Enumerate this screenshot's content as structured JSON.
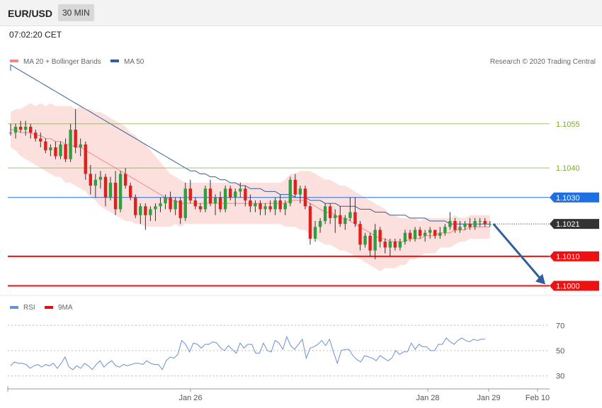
{
  "header": {
    "pair": "EUR/USD",
    "timeframe": "30 MIN"
  },
  "timestamp": "07:02:20 CET",
  "legend": {
    "ma": {
      "label": "MA 20 + Bollinger Bands",
      "color": "#f08a80"
    },
    "ma50": {
      "label": "MA 50",
      "color": "#2f5f9f"
    },
    "rsi": {
      "label": "RSI",
      "color": "#6a8fd8"
    },
    "rsi9": {
      "label": "9MA",
      "color": "#e01010"
    }
  },
  "credit": "Research © 2020 Trading Central",
  "chart_data": [
    {
      "type": "candlestick",
      "title": "EUR/USD",
      "x_tick_labels": [
        "Jan 26",
        "Jan 28",
        "Jan 29",
        "Feb 10"
      ],
      "ylim": [
        1.0997,
        1.1085
      ],
      "levels": [
        {
          "label": "1.1055",
          "value": 1.1055,
          "style": "resistance",
          "color": "#7aab2e"
        },
        {
          "label": "1.1040",
          "value": 1.104,
          "style": "resistance",
          "color": "#7aab2e"
        },
        {
          "label": "1.1030",
          "value": 1.103,
          "style": "pivot",
          "color": "#1f6fe0"
        },
        {
          "label": "1.1021",
          "value": 1.1021,
          "style": "last",
          "color": "#333333"
        },
        {
          "label": "1.1010",
          "value": 1.101,
          "style": "support",
          "color": "#ee1111"
        },
        {
          "label": "1.1000",
          "value": 1.1,
          "style": "support",
          "color": "#ee1111"
        }
      ],
      "candles": [
        [
          1.1052,
          1.1055,
          1.1051,
          1.1052
        ],
        [
          1.1052,
          1.1055,
          1.105,
          1.1054
        ],
        [
          1.1054,
          1.1056,
          1.1052,
          1.1053
        ],
        [
          1.1053,
          1.1056,
          1.1051,
          1.1054
        ],
        [
          1.1054,
          1.1055,
          1.105,
          1.1052
        ],
        [
          1.1052,
          1.1053,
          1.1049,
          1.105
        ],
        [
          1.105,
          1.1052,
          1.1047,
          1.1049
        ],
        [
          1.1049,
          1.105,
          1.1045,
          1.1046
        ],
        [
          1.1046,
          1.1048,
          1.1044,
          1.1047
        ],
        [
          1.1047,
          1.1049,
          1.1043,
          1.1044
        ],
        [
          1.1044,
          1.1049,
          1.1043,
          1.1048
        ],
        [
          1.1048,
          1.105,
          1.1042,
          1.1043
        ],
        [
          1.1043,
          1.1055,
          1.1042,
          1.1053
        ],
        [
          1.1053,
          1.106,
          1.1045,
          1.1047
        ],
        [
          1.1047,
          1.105,
          1.1044,
          1.1048
        ],
        [
          1.1048,
          1.1049,
          1.1036,
          1.1038
        ],
        [
          1.1038,
          1.1041,
          1.1031,
          1.1034
        ],
        [
          1.1034,
          1.1038,
          1.103,
          1.1036
        ],
        [
          1.1036,
          1.1039,
          1.1033,
          1.1037
        ],
        [
          1.1037,
          1.1038,
          1.1027,
          1.103
        ],
        [
          1.103,
          1.1037,
          1.1029,
          1.1035
        ],
        [
          1.1035,
          1.1039,
          1.1024,
          1.1026
        ],
        [
          1.1026,
          1.1039,
          1.1025,
          1.1038
        ],
        [
          1.1038,
          1.104,
          1.1033,
          1.1034
        ],
        [
          1.1034,
          1.1035,
          1.1029,
          1.103
        ],
        [
          1.103,
          1.1031,
          1.1023,
          1.1024
        ],
        [
          1.1024,
          1.1028,
          1.1021,
          1.1027
        ],
        [
          1.1027,
          1.1028,
          1.1019,
          1.1024
        ],
        [
          1.1024,
          1.1027,
          1.1022,
          1.1026
        ],
        [
          1.1026,
          1.1028,
          1.1022,
          1.1027
        ],
        [
          1.1027,
          1.103,
          1.1025,
          1.1028
        ],
        [
          1.1028,
          1.1031,
          1.1026,
          1.103
        ],
        [
          1.103,
          1.1032,
          1.1025,
          1.1026
        ],
        [
          1.1026,
          1.103,
          1.1024,
          1.1029
        ],
        [
          1.1029,
          1.103,
          1.1021,
          1.1023
        ],
        [
          1.1023,
          1.1035,
          1.1022,
          1.1033
        ],
        [
          1.1033,
          1.1036,
          1.1028,
          1.1029
        ],
        [
          1.1029,
          1.103,
          1.1026,
          1.1027
        ],
        [
          1.1027,
          1.1028,
          1.1025,
          1.1026
        ],
        [
          1.1026,
          1.1034,
          1.1025,
          1.1033
        ],
        [
          1.1033,
          1.1036,
          1.1027,
          1.1028
        ],
        [
          1.1028,
          1.1031,
          1.1024,
          1.103
        ],
        [
          1.103,
          1.1032,
          1.1025,
          1.1026
        ],
        [
          1.1026,
          1.1034,
          1.1025,
          1.1033
        ],
        [
          1.1033,
          1.1034,
          1.1029,
          1.103
        ],
        [
          1.103,
          1.1033,
          1.1027,
          1.1032
        ],
        [
          1.1032,
          1.1035,
          1.103,
          1.1033
        ],
        [
          1.1033,
          1.1034,
          1.1027,
          1.1029
        ],
        [
          1.1029,
          1.1031,
          1.1025,
          1.1027
        ],
        [
          1.1027,
          1.1029,
          1.1025,
          1.1028
        ],
        [
          1.1028,
          1.1029,
          1.1024,
          1.1026
        ],
        [
          1.1026,
          1.1028,
          1.1024,
          1.1027
        ],
        [
          1.1027,
          1.1029,
          1.1025,
          1.1026
        ],
        [
          1.1026,
          1.103,
          1.1024,
          1.1029
        ],
        [
          1.1029,
          1.1031,
          1.1025,
          1.1026
        ],
        [
          1.1026,
          1.1029,
          1.1024,
          1.1028
        ],
        [
          1.1028,
          1.1037,
          1.1027,
          1.1036
        ],
        [
          1.1036,
          1.1038,
          1.103,
          1.1031
        ],
        [
          1.1031,
          1.1034,
          1.1028,
          1.1033
        ],
        [
          1.1033,
          1.1034,
          1.1026,
          1.1027
        ],
        [
          1.1027,
          1.1028,
          1.1014,
          1.1016
        ],
        [
          1.1016,
          1.1022,
          1.1015,
          1.102
        ],
        [
          1.102,
          1.1023,
          1.1018,
          1.1022
        ],
        [
          1.1022,
          1.1028,
          1.1021,
          1.1027
        ],
        [
          1.1027,
          1.1028,
          1.1021,
          1.1023
        ],
        [
          1.1023,
          1.1026,
          1.1018,
          1.1024
        ],
        [
          1.1024,
          1.1027,
          1.102,
          1.1021
        ],
        [
          1.1021,
          1.1024,
          1.1019,
          1.1023
        ],
        [
          1.1023,
          1.103,
          1.1022,
          1.1025
        ],
        [
          1.1025,
          1.103,
          1.102,
          1.1021
        ],
        [
          1.1021,
          1.1022,
          1.1012,
          1.1014
        ],
        [
          1.1014,
          1.1018,
          1.1013,
          1.1017
        ],
        [
          1.1017,
          1.1018,
          1.101,
          1.1012
        ],
        [
          1.1012,
          1.1021,
          1.1009,
          1.1019
        ],
        [
          1.1019,
          1.102,
          1.1013,
          1.1015
        ],
        [
          1.1015,
          1.1016,
          1.1011,
          1.1013
        ],
        [
          1.1013,
          1.1016,
          1.101,
          1.1015
        ],
        [
          1.1015,
          1.1016,
          1.1012,
          1.1013
        ],
        [
          1.1013,
          1.1016,
          1.1012,
          1.1015
        ],
        [
          1.1015,
          1.1019,
          1.1014,
          1.1018
        ],
        [
          1.1018,
          1.1019,
          1.1015,
          1.1016
        ],
        [
          1.1016,
          1.102,
          1.1015,
          1.1019
        ],
        [
          1.1019,
          1.102,
          1.1016,
          1.1017
        ],
        [
          1.1017,
          1.1019,
          1.1015,
          1.1018
        ],
        [
          1.1018,
          1.102,
          1.1016,
          1.1019
        ],
        [
          1.1019,
          1.1019,
          1.1016,
          1.1017
        ],
        [
          1.1017,
          1.102,
          1.1016,
          1.1018
        ],
        [
          1.1018,
          1.1021,
          1.1017,
          1.102
        ],
        [
          1.102,
          1.1025,
          1.1019,
          1.1022
        ],
        [
          1.1022,
          1.1023,
          1.1018,
          1.1019
        ],
        [
          1.1019,
          1.1022,
          1.1018,
          1.102
        ],
        [
          1.102,
          1.1022,
          1.1019,
          1.1021
        ],
        [
          1.1021,
          1.1023,
          1.1019,
          1.102
        ],
        [
          1.102,
          1.1023,
          1.1019,
          1.1022
        ],
        [
          1.1022,
          1.1023,
          1.102,
          1.1022
        ],
        [
          1.1022,
          1.1023,
          1.102,
          1.1021
        ],
        [
          1.1021,
          1.1022,
          1.102,
          1.1021
        ]
      ],
      "ma50": [
        1.1075,
        1.1074,
        1.1073,
        1.1072,
        1.1071,
        1.107,
        1.1069,
        1.1068,
        1.1067,
        1.1066,
        1.1065,
        1.1064,
        1.1063,
        1.1062,
        1.1061,
        1.106,
        1.1059,
        1.1058,
        1.1057,
        1.1056,
        1.1055,
        1.1054,
        1.1053,
        1.1052,
        1.1051,
        1.105,
        1.1049,
        1.1048,
        1.1047,
        1.1046,
        1.1045,
        1.1044,
        1.1043,
        1.1042,
        1.1041,
        1.104,
        1.1039,
        1.1039,
        1.1038,
        1.1038,
        1.1037,
        1.1037,
        1.1036,
        1.1036,
        1.1035,
        1.1035,
        1.1034,
        1.1034,
        1.1033,
        1.1033,
        1.1033,
        1.1032,
        1.1032,
        1.1032,
        1.1031,
        1.1031,
        1.1031,
        1.103,
        1.103,
        1.103,
        1.1029,
        1.1029,
        1.1029,
        1.1028,
        1.1028,
        1.1028,
        1.1027,
        1.1027,
        1.1027,
        1.1027,
        1.1026,
        1.1026,
        1.1026,
        1.1025,
        1.1025,
        1.1025,
        1.1024,
        1.1024,
        1.1024,
        1.1024,
        1.1023,
        1.1023,
        1.1023,
        1.1023,
        1.1022,
        1.1022,
        1.1022,
        1.1022,
        1.1021,
        1.1021,
        1.1021,
        1.1021,
        1.1021,
        1.1021,
        1.1021,
        1.1021,
        1.1021
      ],
      "ma20": [
        1.1053,
        1.1053,
        1.1052,
        1.1052,
        1.1052,
        1.1051,
        1.1051,
        1.105,
        1.105,
        1.1049,
        1.1049,
        1.1048,
        1.1048,
        1.1047,
        1.1047,
        1.1046,
        1.1045,
        1.1044,
        1.1043,
        1.1042,
        1.1041,
        1.104,
        1.1039,
        1.1038,
        1.1037,
        1.1036,
        1.1035,
        1.1034,
        1.1033,
        1.1032,
        1.1031,
        1.103,
        1.1029,
        1.1029,
        1.1028,
        1.1028,
        1.1028,
        1.1028,
        1.1028,
        1.1028,
        1.1028,
        1.1028,
        1.1028,
        1.1028,
        1.1028,
        1.1028,
        1.1028,
        1.1028,
        1.1028,
        1.1028,
        1.1028,
        1.1028,
        1.1028,
        1.1028,
        1.1028,
        1.1028,
        1.1029,
        1.1029,
        1.1029,
        1.1029,
        1.1028,
        1.1027,
        1.1026,
        1.1025,
        1.1025,
        1.1024,
        1.1023,
        1.1023,
        1.1022,
        1.1021,
        1.102,
        1.1019,
        1.1018,
        1.1017,
        1.1016,
        1.1016,
        1.1015,
        1.1015,
        1.1015,
        1.1015,
        1.1016,
        1.1016,
        1.1016,
        1.1017,
        1.1017,
        1.1017,
        1.1018,
        1.1018,
        1.1018,
        1.1019,
        1.1019,
        1.1019,
        1.102,
        1.102,
        1.102,
        1.102,
        1.102
      ],
      "bb_width": [
        0.0006,
        0.0007,
        0.0008,
        0.0009,
        0.001,
        0.001,
        0.0011,
        0.0011,
        0.0012,
        0.0012,
        0.0012,
        0.0013,
        0.0013,
        0.0013,
        0.0014,
        0.0014,
        0.0015,
        0.0015,
        0.0016,
        0.0016,
        0.0016,
        0.0016,
        0.0016,
        0.0016,
        0.0015,
        0.0015,
        0.0014,
        0.0014,
        0.0013,
        0.0012,
        0.0011,
        0.001,
        0.0009,
        0.0008,
        0.0008,
        0.0007,
        0.0007,
        0.0007,
        0.0007,
        0.0007,
        0.0007,
        0.0007,
        0.0007,
        0.0007,
        0.0007,
        0.0007,
        0.0007,
        0.0007,
        0.0007,
        0.0007,
        0.0007,
        0.0007,
        0.0007,
        0.0007,
        0.0007,
        0.0008,
        0.0009,
        0.0009,
        0.001,
        0.001,
        0.0011,
        0.0011,
        0.0011,
        0.0011,
        0.0011,
        0.0011,
        0.0011,
        0.0011,
        0.0011,
        0.0011,
        0.0011,
        0.0011,
        0.0011,
        0.0011,
        0.0011,
        0.001,
        0.0009,
        0.0009,
        0.0008,
        0.0008,
        0.0007,
        0.0007,
        0.0006,
        0.0006,
        0.0006,
        0.0006,
        0.0005,
        0.0005,
        0.0005,
        0.0005,
        0.0004,
        0.0004,
        0.0004,
        0.0004,
        0.0004,
        0.0004,
        0.0004
      ],
      "projection": {
        "from": 1.1021,
        "to": 1.1
      }
    },
    {
      "type": "line",
      "title": "RSI",
      "ylim": [
        22,
        78
      ],
      "y_ticks": [
        30,
        50,
        70
      ],
      "series": [
        {
          "name": "RSI",
          "color": "#6a8fd8",
          "values": [
            38,
            41,
            40,
            40,
            39,
            36,
            38,
            39,
            37,
            39,
            38,
            40,
            36,
            40,
            45,
            37,
            35,
            38,
            36,
            40,
            38,
            35,
            39,
            42,
            37,
            40,
            42,
            38,
            37,
            39,
            38,
            39,
            40,
            40,
            39,
            42,
            40,
            39,
            39,
            35,
            42,
            45,
            44,
            47,
            58,
            55,
            49,
            56,
            55,
            52,
            55,
            55,
            57,
            56,
            52,
            50,
            54,
            51,
            48,
            56,
            52,
            55,
            55,
            48,
            48,
            56,
            50,
            49,
            58,
            56,
            51,
            61,
            54,
            51,
            55,
            59,
            44,
            52,
            53,
            55,
            58,
            54,
            59,
            49,
            40,
            50,
            51,
            51,
            46,
            43,
            41,
            46,
            45,
            44,
            42,
            46,
            44,
            42,
            44,
            50,
            47,
            49,
            49,
            56,
            51,
            55,
            53,
            53,
            50,
            50,
            55,
            55,
            60,
            57,
            55,
            58,
            60,
            58,
            57,
            59,
            58,
            59,
            59
          ]
        }
      ]
    }
  ]
}
